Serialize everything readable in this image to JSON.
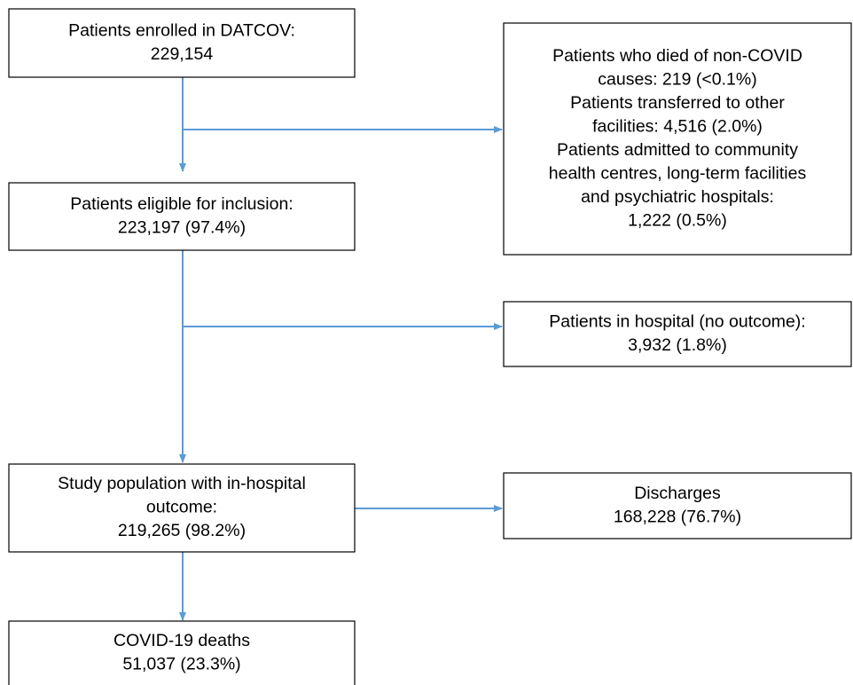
{
  "nodes": [
    {
      "lines": [
        "Patients enrolled in DATCOV:",
        "229,154"
      ]
    },
    {
      "lines": [
        "Patients eligible for inclusion:",
        "223,197 (97.4%)"
      ]
    },
    {
      "lines": [
        "Study population with in-hospital",
        "outcome:",
        "219,265 (98.2%)"
      ]
    },
    {
      "lines": [
        "COVID-19 deaths",
        "51,037 (23.3%)"
      ]
    },
    {
      "lines": [
        "Patients who died of non-COVID",
        "causes: 219 (<0.1%)",
        "Patients transferred to other",
        "facilities: 4,516 (2.0%)",
        "Patients admitted to community",
        "health centres, long-term facilities",
        "and psychiatric hospitals:",
        "1,222 (0.5%)"
      ]
    },
    {
      "lines": [
        "Patients in hospital (no outcome):",
        "3,932 (1.8%)"
      ]
    },
    {
      "lines": [
        "Discharges",
        "168,228 (76.7%)"
      ]
    }
  ]
}
